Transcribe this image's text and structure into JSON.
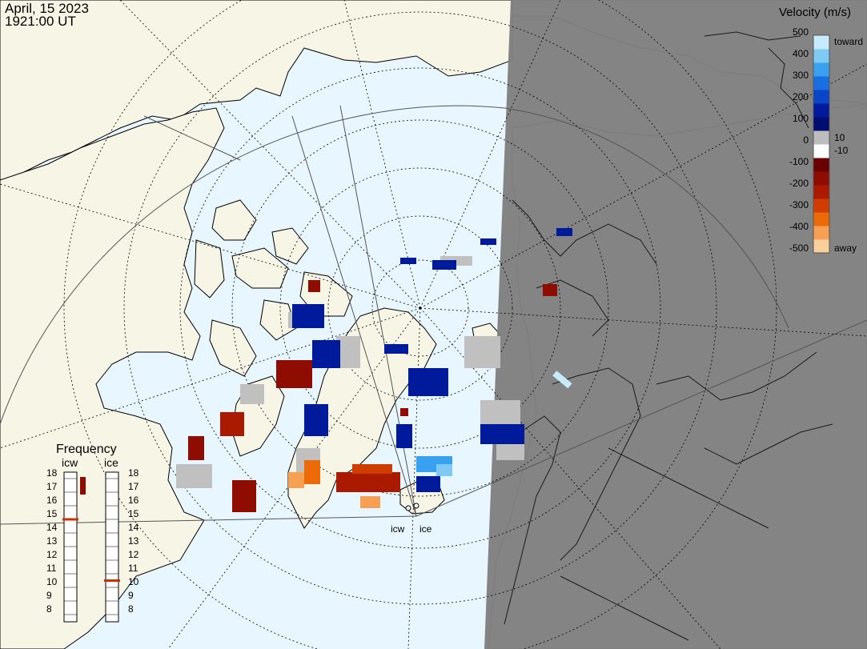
{
  "header": {
    "date": "April, 15 2023",
    "time": "1921:00 UT"
  },
  "legend": {
    "title": "Velocity (m/s)",
    "ticks": [
      "500",
      "400",
      "300",
      "200",
      "100",
      "0",
      "-100",
      "-200",
      "-300",
      "-400",
      "-500"
    ],
    "side_labels": {
      "toward": "toward",
      "ten": "10",
      "minus_ten": "-10",
      "away": "away"
    },
    "colors": [
      "#f9cf9d",
      "#f7a054",
      "#ec6a08",
      "#d03d00",
      "#aa1a00",
      "#8e0d00",
      "#6a0000",
      "#ffffff",
      "#bdbdbd",
      "#000d70",
      "#001a9c",
      "#0a45c8",
      "#1a6ee2",
      "#3aa0f0",
      "#7fcaf5",
      "#c8ebfb"
    ]
  },
  "frequency": {
    "title": "Frequency",
    "radars": [
      {
        "name": "icw",
        "selected_mhz": 15
      },
      {
        "name": "ice",
        "selected_mhz": 10.5
      }
    ],
    "scale": [
      "18",
      "17",
      "16",
      "15",
      "14",
      "13",
      "12",
      "11",
      "10",
      "9",
      "8"
    ]
  },
  "radars": {
    "icw": "icw",
    "ice": "ice"
  },
  "colors": {
    "ocean": "#e8f6ff",
    "land": "#f7f5e5",
    "night": "#808080",
    "ground_scatter": "#c0c0c0",
    "marker": "#d03000"
  }
}
